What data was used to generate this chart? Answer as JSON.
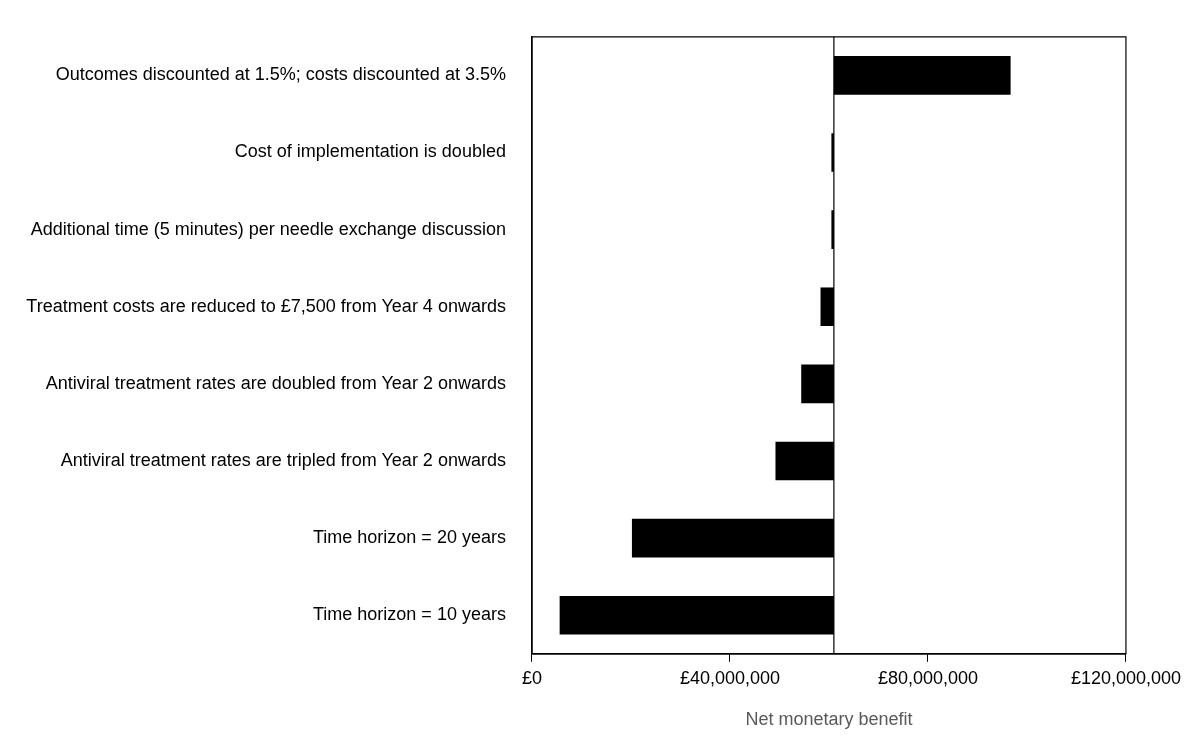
{
  "chart_data": {
    "type": "bar",
    "orientation": "horizontal",
    "xlabel": "Net monetary benefit",
    "categories": [
      "Outcomes discounted at 1.5%; costs discounted at 3.5%",
      "Cost of implementation is doubled",
      "Additional time (5 minutes) per needle exchange discussion",
      "Treatment costs are reduced to £7,500 from Year 4 onwards",
      "Antiviral treatment rates are doubled from Year 2 onwards",
      "Antiviral treatment rates are tripled from Year 2 onwards",
      "Time horizon = 20 years",
      "Time horizon = 10 years"
    ],
    "base": [
      61000000,
      61000000,
      61000000,
      61000000,
      61000000,
      61000000,
      61000000,
      61000000
    ],
    "values": [
      35700000,
      -500000,
      -500000,
      -2700000,
      -6600000,
      -11800000,
      -40800000,
      -55400000
    ],
    "color": "#000000",
    "xlim": [
      0,
      120000000
    ],
    "xticks": [
      {
        "value": 0,
        "label": "£0"
      },
      {
        "value": 40000000,
        "label": "£40,000,000"
      },
      {
        "value": 80000000,
        "label": "£80,000,000"
      },
      {
        "value": 120000000,
        "label": "£120,000,000"
      }
    ],
    "ref_lines": [
      {
        "axis": "x",
        "value": 61000000,
        "color": "#000000"
      }
    ],
    "grid": false,
    "legend": false
  }
}
